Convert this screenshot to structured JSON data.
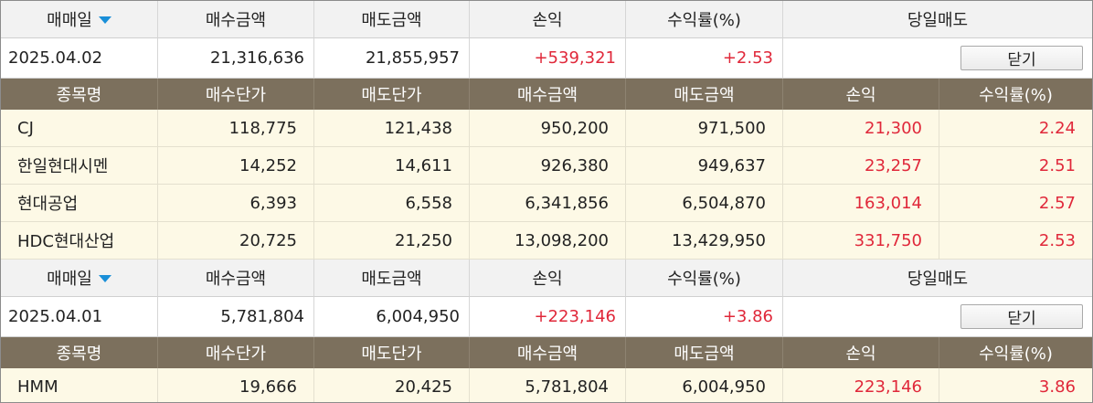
{
  "summary_headers": {
    "date_label": "매매일",
    "buy_amount": "매수금액",
    "sell_amount": "매도금액",
    "profit": "손익",
    "return_rate": "수익률(%)",
    "same_day_sell": "당일매도"
  },
  "detail_headers": {
    "stock_name": "종목명",
    "buy_price": "매수단가",
    "sell_price": "매도단가",
    "buy_amount": "매수금액",
    "sell_amount": "매도금액",
    "profit": "손익",
    "return_rate": "수익률(%)"
  },
  "close_label": "닫기",
  "groups": [
    {
      "summary": {
        "date": "2025.04.02",
        "buy_amount": "21,316,636",
        "sell_amount": "21,855,957",
        "profit": "+539,321",
        "return_rate": "+2.53"
      },
      "items": [
        {
          "name": "CJ",
          "buy_price": "118,775",
          "sell_price": "121,438",
          "buy_amount": "950,200",
          "sell_amount": "971,500",
          "profit": "21,300",
          "return_rate": "2.24"
        },
        {
          "name": "한일현대시멘",
          "buy_price": "14,252",
          "sell_price": "14,611",
          "buy_amount": "926,380",
          "sell_amount": "949,637",
          "profit": "23,257",
          "return_rate": "2.51"
        },
        {
          "name": "현대공업",
          "buy_price": "6,393",
          "sell_price": "6,558",
          "buy_amount": "6,341,856",
          "sell_amount": "6,504,870",
          "profit": "163,014",
          "return_rate": "2.57"
        },
        {
          "name": "HDC현대산업",
          "buy_price": "20,725",
          "sell_price": "21,250",
          "buy_amount": "13,098,200",
          "sell_amount": "13,429,950",
          "profit": "331,750",
          "return_rate": "2.53"
        }
      ]
    },
    {
      "summary": {
        "date": "2025.04.01",
        "buy_amount": "5,781,804",
        "sell_amount": "6,004,950",
        "profit": "+223,146",
        "return_rate": "+3.86"
      },
      "items": [
        {
          "name": "HMM",
          "buy_price": "19,666",
          "sell_price": "20,425",
          "buy_amount": "5,781,804",
          "sell_amount": "6,004,950",
          "profit": "223,146",
          "return_rate": "3.86"
        }
      ]
    }
  ],
  "colors": {
    "profit_red": "#e0283a",
    "header_brown": "#7c705d",
    "row_cream": "#fdf9e6",
    "sort_arrow_blue": "#1a8fd8"
  },
  "icons": {
    "sort": "sort-down-arrow-icon"
  }
}
